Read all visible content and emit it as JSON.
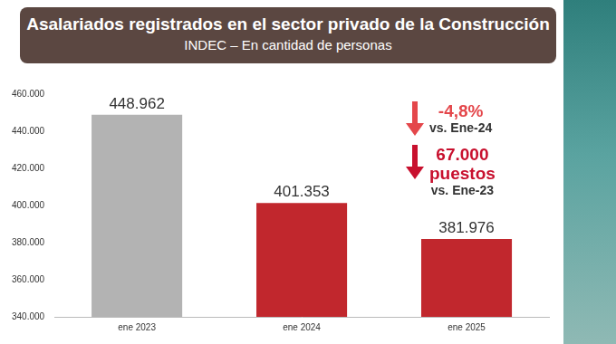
{
  "chart_data": {
    "type": "bar",
    "title": "Asalariados registrados en el sector privado de la Construcción",
    "subtitle": "INDEC – En cantidad de personas",
    "categories": [
      "ene 2023",
      "ene 2024",
      "ene 2025"
    ],
    "values": [
      448962,
      401353,
      381976
    ],
    "value_labels": [
      "448.962",
      "401.353",
      "381.976"
    ],
    "colors": [
      "#b3b3b3",
      "#c1272d",
      "#c1272d"
    ],
    "ylim": [
      340000,
      460000
    ],
    "yticks": [
      {
        "value": 340000,
        "label": "340.000"
      },
      {
        "value": 360000,
        "label": "360.000"
      },
      {
        "value": 380000,
        "label": "380.000"
      },
      {
        "value": 400000,
        "label": "400.000"
      },
      {
        "value": 420000,
        "label": "420.000"
      },
      {
        "value": 440000,
        "label": "440.000"
      },
      {
        "value": 460000,
        "label": "460.000"
      }
    ],
    "grid": false,
    "data_labels": true,
    "annotations": [
      {
        "lines": [
          "-4,8%"
        ],
        "note": "vs. Ene-24"
      },
      {
        "lines": [
          "67.000",
          "puestos"
        ],
        "note": "vs. Ene-23"
      }
    ]
  }
}
